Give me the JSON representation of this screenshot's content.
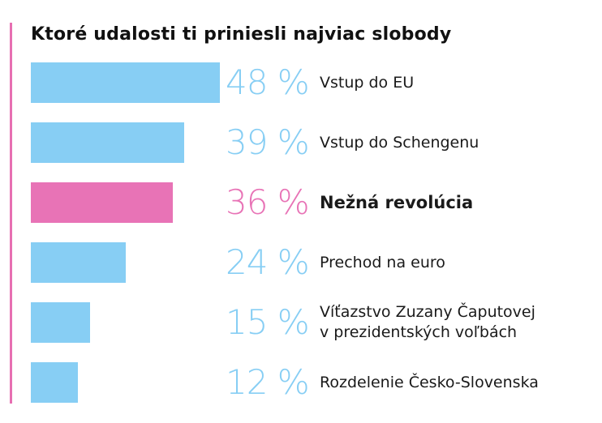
{
  "colors": {
    "accent": "#e76fb2",
    "bar_default": "#87cef4",
    "bar_highlight": "#e873b6",
    "pct_default": "#87cef4",
    "pct_highlight": "#e873b6"
  },
  "chart_data": {
    "type": "bar",
    "orientation": "horizontal",
    "title": "Ktoré udalosti ti priniesli najviac slobody",
    "xlabel": "",
    "ylabel": "",
    "grid": false,
    "unit": "%",
    "categories": [
      "Vstup do EU",
      "Vstup do Schengenu",
      "Nežná revolúcia",
      "Prechod na euro",
      "Víťazstvo Zuzany Čaputovej\nv   prezidentských voľbách",
      "Rozdelenie Česko-Slovenska"
    ],
    "values": [
      48,
      39,
      36,
      24,
      15,
      12
    ],
    "value_labels": [
      "48 %",
      "39 %",
      "36 %",
      "24 %",
      "15 %",
      "12 %"
    ],
    "highlighted_index": 2,
    "xlim": [
      0,
      48
    ]
  }
}
